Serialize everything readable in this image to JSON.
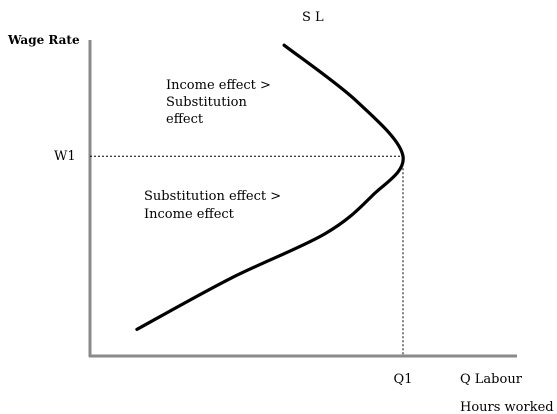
{
  "chart_data": {
    "type": "line",
    "title": "",
    "ylabel": "Wage Rate",
    "xlabel": "Q Labour",
    "xlabel_secondary": "Hours worked",
    "curve_label": "S L",
    "x_tick_label": "Q1",
    "y_tick_label": "W1",
    "annotations": [
      {
        "lines": [
          "Income effect >",
          "Substitution",
          "effect"
        ]
      },
      {
        "lines": [
          "Substitution effect >",
          "Income effect"
        ]
      }
    ],
    "grid": false,
    "series": [
      {
        "values": [
          {
            "x": 0.15,
            "y": 0.12
          },
          {
            "x": 0.45,
            "y": 0.35
          },
          {
            "x": 0.75,
            "y": 0.55
          },
          {
            "x": 0.9,
            "y": 0.72
          },
          {
            "x": 1.0,
            "y": 0.9
          },
          {
            "x": 0.85,
            "y": 1.15
          },
          {
            "x": 0.62,
            "y": 1.4
          }
        ]
      }
    ],
    "reference": {
      "x": 1.0,
      "y": 0.9
    }
  }
}
